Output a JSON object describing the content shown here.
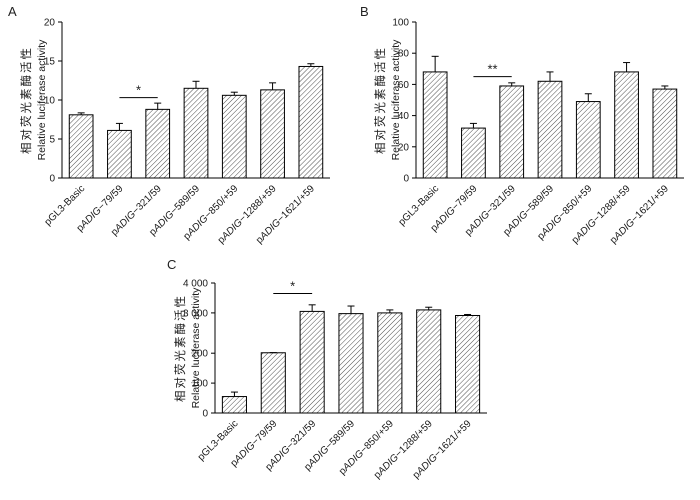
{
  "colors": {
    "bar_fill": "#ffffff",
    "hatch": "#4f4f4f",
    "axis": "#000000",
    "text": "#1a1a1a"
  },
  "chart_data": [
    {
      "panel": "A",
      "type": "bar",
      "ylabel_cn": "相对荧光素酶活性",
      "ylabel_en": "Relative luciferase activity",
      "categories": [
        "pGL3-Basic",
        "pADIG−79/59",
        "pADIG−321/59",
        "pADIG−589/59",
        "pADIG−850/+59",
        "pADIG−1288/+59",
        "pADIG−1621/+59"
      ],
      "values": [
        8.1,
        6.1,
        8.8,
        11.5,
        10.6,
        11.3,
        14.3
      ],
      "errors": [
        0.25,
        0.9,
        0.8,
        0.9,
        0.4,
        0.9,
        0.35
      ],
      "ylim": [
        0,
        20
      ],
      "yticks": {
        "values": [
          0,
          5,
          10,
          15,
          20
        ],
        "labels": [
          "0",
          "5",
          "10",
          "15",
          "20"
        ]
      },
      "axis_fractions": null,
      "grid": false,
      "legend": null,
      "significance": {
        "from_index": 1,
        "to_index": 2,
        "label": "*",
        "line_value": 10.3
      }
    },
    {
      "panel": "B",
      "type": "bar",
      "ylabel_cn": "相对荧光素酶活性",
      "ylabel_en": "Relative luciferase activity",
      "categories": [
        "pGL3-Basic",
        "pADIG−79/59",
        "pADIG−321/59",
        "pADIG−589/59",
        "pADIG−850/+59",
        "pADIG−1288/+59",
        "pADIG−1621/+59"
      ],
      "values": [
        68,
        32,
        59,
        62,
        49,
        68,
        57
      ],
      "errors": [
        10,
        3,
        2,
        6,
        5,
        6,
        2
      ],
      "ylim": [
        0,
        100
      ],
      "yticks": {
        "values": [
          0,
          20,
          40,
          60,
          80,
          100
        ],
        "labels": [
          "0",
          "20",
          "40",
          "60",
          "80",
          "100"
        ]
      },
      "axis_fractions": null,
      "grid": false,
      "legend": null,
      "significance": {
        "from_index": 1,
        "to_index": 2,
        "label": "**",
        "line_value": 65
      }
    },
    {
      "panel": "C",
      "type": "bar",
      "ylabel_cn": "相对荧光素酶活性",
      "ylabel_en": "Relative luciferase activity",
      "categories": [
        "pGL3-Basic",
        "pADIG−79/59",
        "pADIG−321/59",
        "pADIG−589/59",
        "pADIG−850/+59",
        "pADIG−1288/+59",
        "pADIG−1621/+59"
      ],
      "values": [
        55,
        230,
        3050,
        2950,
        3000,
        3100,
        2820
      ],
      "errors": [
        15,
        12,
        220,
        280,
        100,
        90,
        70
      ],
      "ylim": [
        0,
        4000
      ],
      "axis_break": true,
      "yticks": {
        "values": [
          0,
          100,
          200,
          3000,
          4000
        ],
        "labels": [
          "0",
          "100",
          "200",
          "3 000",
          "4 000"
        ]
      },
      "axis_fractions": [
        0,
        0.23,
        0.46,
        0.77,
        1.0
      ],
      "grid": false,
      "legend": null,
      "significance": {
        "from_index": 1,
        "to_index": 2,
        "label": "*",
        "line_value": 3650
      }
    }
  ]
}
